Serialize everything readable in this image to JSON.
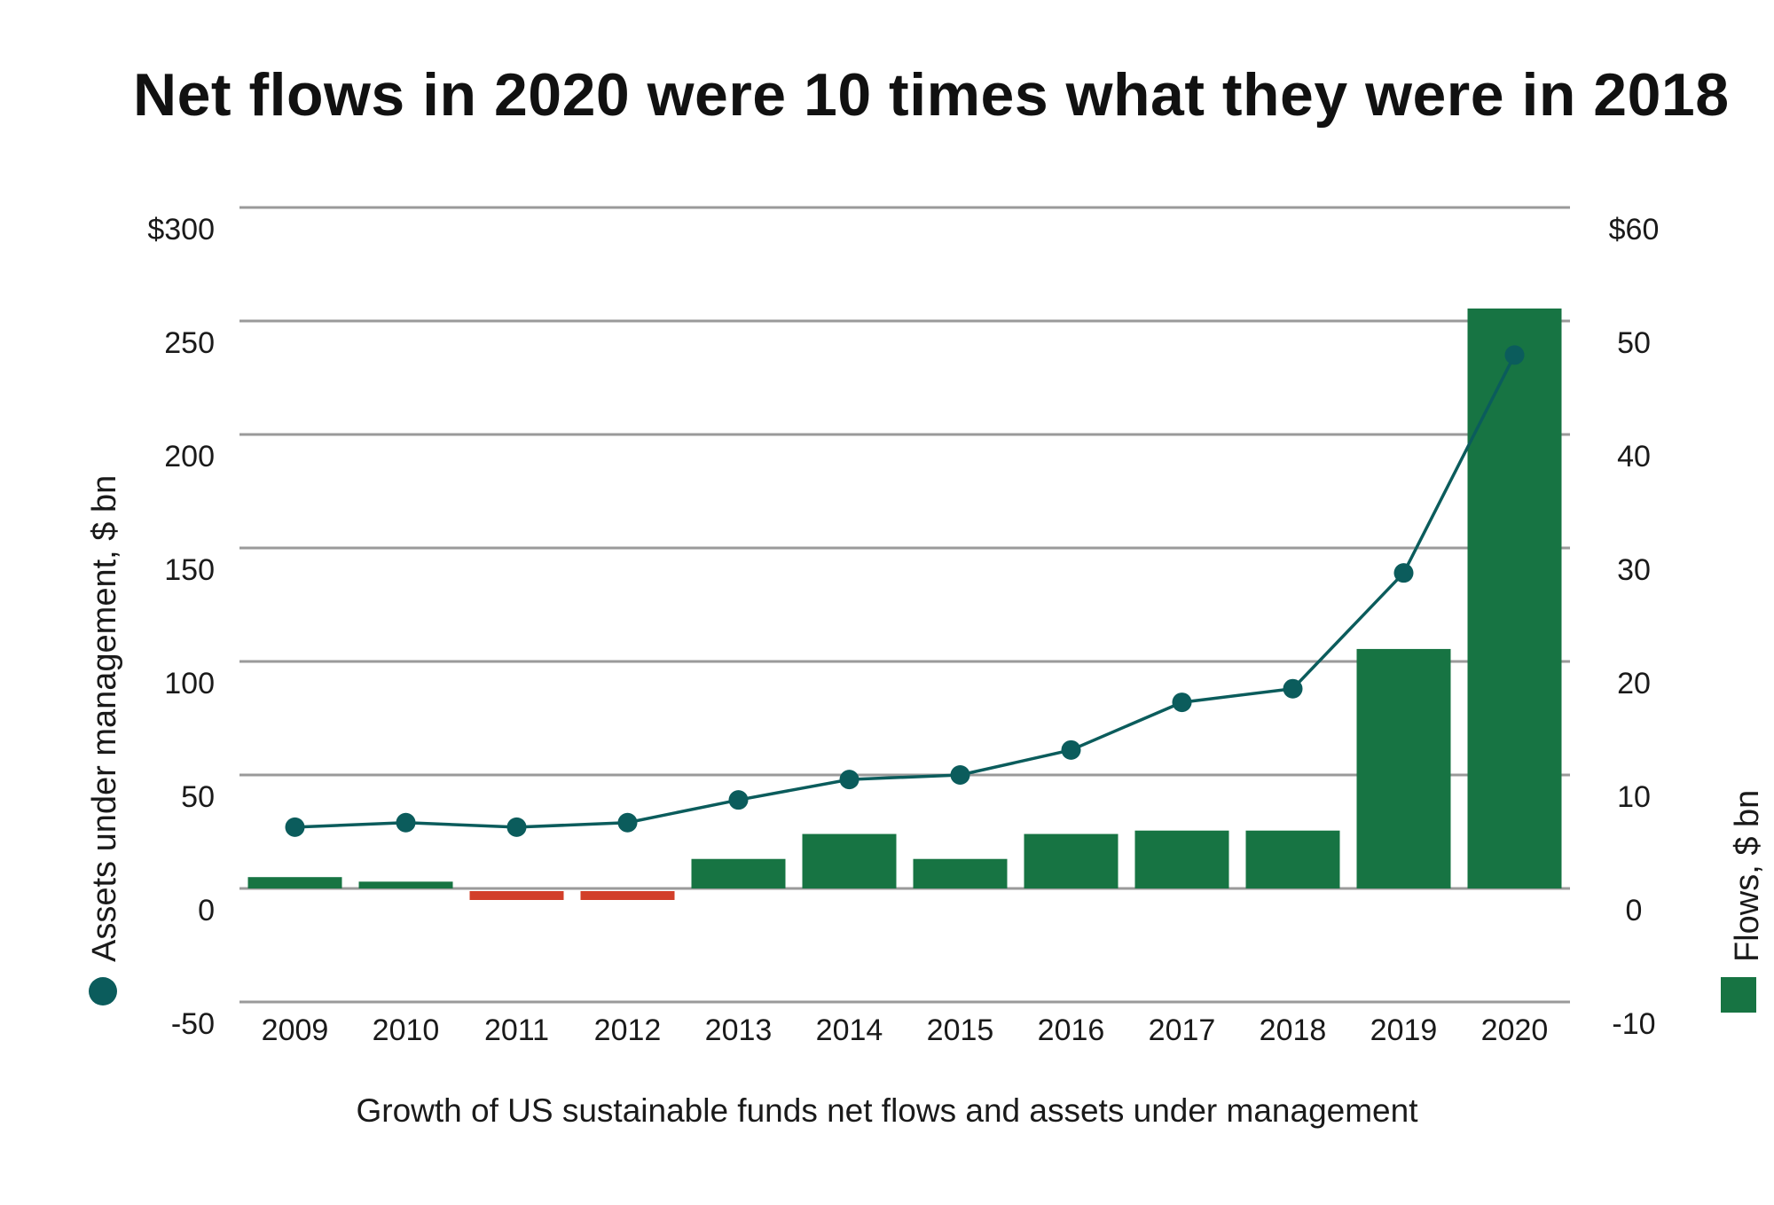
{
  "title": "Net flows in 2020 were 10 times what they were in 2018",
  "caption": "Growth of US sustainable funds net flows and assets under management",
  "colors": {
    "line": "#0b5c5c",
    "bar_positive": "#177443",
    "bar_negative": "#d23f2a",
    "grid": "#9a9a9a"
  },
  "chart_data": {
    "type": "bar",
    "categories": [
      "2009",
      "2010",
      "2011",
      "2012",
      "2013",
      "2014",
      "2015",
      "2016",
      "2017",
      "2018",
      "2019",
      "2020"
    ],
    "series": [
      {
        "name": "Assets under management, $ bn",
        "type": "line",
        "axis": "left",
        "marker": "circle",
        "values": [
          27,
          29,
          27,
          29,
          39,
          48,
          50,
          61,
          82,
          88,
          139,
          235
        ]
      },
      {
        "name": "Flows, $ bn",
        "type": "bar",
        "axis": "right",
        "values": [
          1.0,
          0.6,
          -0.8,
          -0.8,
          2.6,
          4.8,
          2.6,
          4.8,
          5.1,
          5.1,
          21.1,
          51.1
        ]
      }
    ],
    "left_axis": {
      "label": "Assets under management, $ bn",
      "ylim": [
        -50,
        300
      ],
      "ticks": [
        300,
        250,
        200,
        150,
        100,
        50,
        0,
        -50
      ],
      "tick_labels": [
        "$300",
        "250",
        "200",
        "150",
        "100",
        "50",
        "0",
        "-50"
      ]
    },
    "right_axis": {
      "label": "Flows, $ bn",
      "ylim": [
        -10,
        60
      ],
      "ticks": [
        60,
        50,
        40,
        30,
        20,
        10,
        0,
        -10
      ],
      "tick_labels": [
        "$60",
        "50",
        "40",
        "30",
        "20",
        "10",
        "0",
        "-10"
      ]
    },
    "grid": true,
    "legend": "axis-labels"
  }
}
